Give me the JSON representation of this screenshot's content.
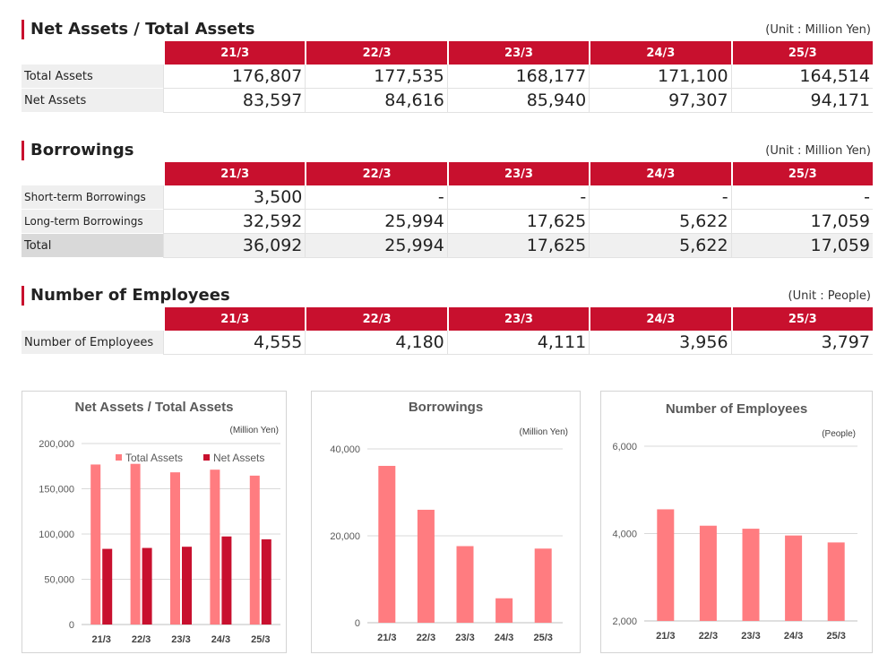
{
  "colors": {
    "accent": "#c8102e",
    "light_bar": "#ff7c80",
    "dark_bar": "#c8102e"
  },
  "years": [
    "21/3",
    "22/3",
    "23/3",
    "24/3",
    "25/3"
  ],
  "assets_table": {
    "title": "Net Assets / Total Assets",
    "unit": "(Unit : Million Yen)",
    "rows": [
      {
        "label": "Total Assets",
        "values": [
          "176,807",
          "177,535",
          "168,177",
          "171,100",
          "164,514"
        ]
      },
      {
        "label": "Net Assets",
        "values": [
          "83,597",
          "84,616",
          "85,940",
          "97,307",
          "94,171"
        ]
      }
    ]
  },
  "borrowings_table": {
    "title": "Borrowings",
    "unit": "(Unit : Million Yen)",
    "rows": [
      {
        "label": "Short-term Borrowings",
        "values": [
          "3,500",
          "-",
          "-",
          "-",
          "-"
        ]
      },
      {
        "label": "Long-term Borrowings",
        "values": [
          "32,592",
          "25,994",
          "17,625",
          "5,622",
          "17,059"
        ]
      },
      {
        "label": "Total",
        "values": [
          "36,092",
          "25,994",
          "17,625",
          "5,622",
          "17,059"
        ]
      }
    ]
  },
  "employees_table": {
    "title": "Number of Employees",
    "unit": "(Unit : People)",
    "rows": [
      {
        "label": "Number of Employees",
        "values": [
          "4,555",
          "4,180",
          "4,111",
          "3,956",
          "3,797"
        ]
      }
    ]
  },
  "chart_data": [
    {
      "type": "bar",
      "title": "Net Assets / Total Assets",
      "unit_label": "(Million Yen)",
      "categories": [
        "21/3",
        "22/3",
        "23/3",
        "24/3",
        "25/3"
      ],
      "series": [
        {
          "name": "Total Assets",
          "values": [
            176807,
            177535,
            168177,
            171100,
            164514
          ],
          "color": "#ff7c80"
        },
        {
          "name": "Net Assets",
          "values": [
            83597,
            84616,
            85940,
            97307,
            94171
          ],
          "color": "#c8102e"
        }
      ],
      "ylim": [
        0,
        200000
      ],
      "yticks": [
        0,
        50000,
        100000,
        150000,
        200000
      ],
      "ytick_labels": [
        "0",
        "50,000",
        "100,000",
        "150,000",
        "200,000"
      ],
      "legend": "top-right",
      "grid": true
    },
    {
      "type": "bar",
      "title": "Borrowings",
      "unit_label": "(Million Yen)",
      "categories": [
        "21/3",
        "22/3",
        "23/3",
        "24/3",
        "25/3"
      ],
      "series": [
        {
          "name": "Borrowings",
          "values": [
            36092,
            25994,
            17625,
            5622,
            17059
          ],
          "color": "#ff7c80"
        }
      ],
      "ylim": [
        0,
        40000
      ],
      "yticks": [
        0,
        20000,
        40000
      ],
      "ytick_labels": [
        "0",
        "20,000",
        "40,000"
      ],
      "grid": true
    },
    {
      "type": "bar",
      "title": "Number of Employees",
      "unit_label": "(People)",
      "categories": [
        "21/3",
        "22/3",
        "23/3",
        "24/3",
        "25/3"
      ],
      "series": [
        {
          "name": "Number of Employees",
          "values": [
            4555,
            4180,
            4111,
            3956,
            3797
          ],
          "color": "#ff7c80"
        }
      ],
      "ylim": [
        2000,
        6000
      ],
      "yticks": [
        2000,
        4000,
        6000
      ],
      "ytick_labels": [
        "2,000",
        "4,000",
        "6,000"
      ],
      "grid": true
    }
  ]
}
